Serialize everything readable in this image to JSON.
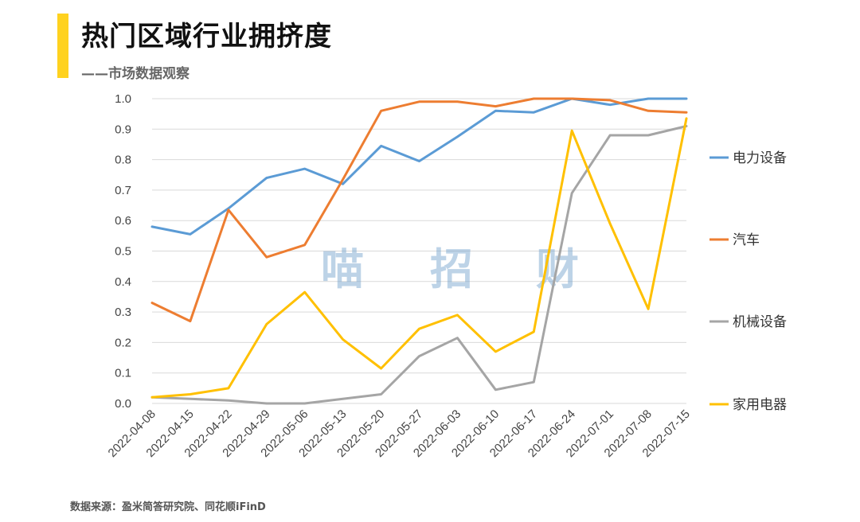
{
  "header": {
    "title": "热门区域行业拥挤度",
    "subtitle": "——市场数据观察"
  },
  "watermark": [
    "喵",
    "招",
    "财"
  ],
  "footer": {
    "source": "数据来源：盈米简答研究院、同花顺iFinD"
  },
  "colors": {
    "accent": "#FFD21F",
    "grid": "#D9D9D9"
  },
  "chart_data": {
    "type": "line",
    "title": "热门区域行业拥挤度",
    "xlabel": "",
    "ylabel": "",
    "ylim": [
      0,
      1.0
    ],
    "yticks": [
      "0.0",
      "0.1",
      "0.2",
      "0.3",
      "0.4",
      "0.5",
      "0.6",
      "0.7",
      "0.8",
      "0.9",
      "1.0"
    ],
    "grid": true,
    "legend_position": "right",
    "x": [
      "2022-04-08",
      "2022-04-15",
      "2022-04-22",
      "2022-04-29",
      "2022-05-06",
      "2022-05-13",
      "2022-05-20",
      "2022-05-27",
      "2022-06-03",
      "2022-06-10",
      "2022-06-17",
      "2022-06-24",
      "2022-07-01",
      "2022-07-08",
      "2022-07-15"
    ],
    "series": [
      {
        "name": "电力设备",
        "color": "#5B9BD5",
        "values": [
          0.58,
          0.555,
          0.64,
          0.74,
          0.77,
          0.72,
          0.845,
          0.795,
          0.875,
          0.96,
          0.955,
          1.0,
          0.98,
          1.0,
          1.0
        ]
      },
      {
        "name": "汽车",
        "color": "#ED7D31",
        "values": [
          0.33,
          0.27,
          0.635,
          0.48,
          0.52,
          0.735,
          0.96,
          0.99,
          0.99,
          0.975,
          1.0,
          1.0,
          0.995,
          0.96,
          0.955
        ]
      },
      {
        "name": "机械设备",
        "color": "#A5A5A5",
        "values": [
          0.02,
          0.015,
          0.01,
          0.0,
          0.0,
          0.015,
          0.03,
          0.155,
          0.215,
          0.045,
          0.07,
          0.69,
          0.88,
          0.88,
          0.91
        ]
      },
      {
        "name": "家用电器",
        "color": "#FFC000",
        "values": [
          0.02,
          0.03,
          0.05,
          0.26,
          0.365,
          0.21,
          0.115,
          0.245,
          0.29,
          0.17,
          0.235,
          0.895,
          0.59,
          0.31,
          0.935
        ]
      }
    ]
  }
}
